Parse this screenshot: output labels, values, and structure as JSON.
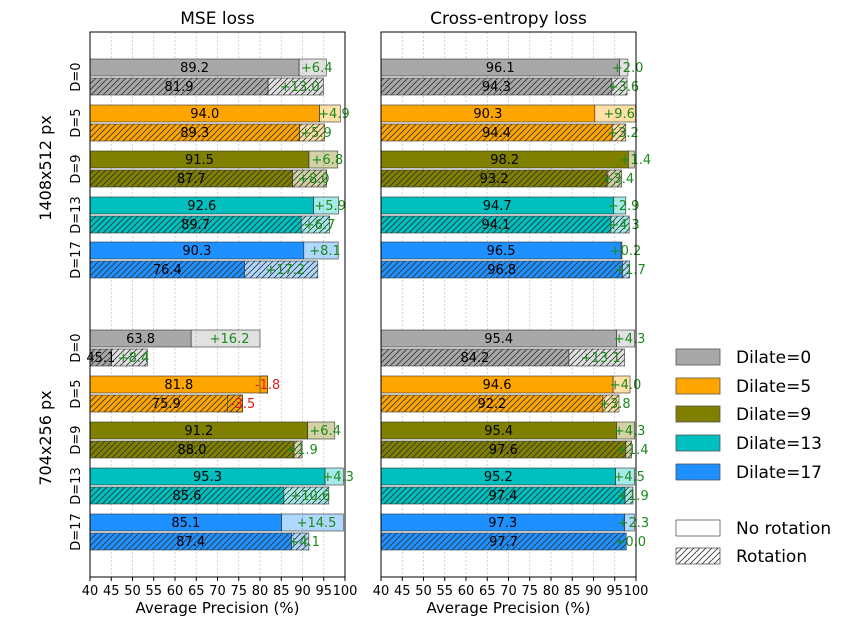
{
  "chart_data": [
    {
      "type": "bar",
      "orientation": "horizontal",
      "stacked": true,
      "title": "MSE loss",
      "xlabel": "Average Precision (%)",
      "xlim": [
        40,
        100
      ],
      "xticks": [
        "40",
        "45",
        "50",
        "55",
        "60",
        "65",
        "70",
        "75",
        "80",
        "85",
        "90",
        "95",
        "100"
      ],
      "grid": "vertical dashed",
      "groups": [
        {
          "name": "1408x512 px",
          "rows": [
            {
              "label": "D=0",
              "color": "#a8a8a8",
              "no_rotation": {
                "base": "89.2",
                "delta": "+6.4"
              },
              "rotation": {
                "base": "81.9",
                "delta": "+13.0"
              }
            },
            {
              "label": "D=5",
              "color": "#ffa500",
              "no_rotation": {
                "base": "94.0",
                "delta": "+4.9"
              },
              "rotation": {
                "base": "89.3",
                "delta": "+5.9"
              }
            },
            {
              "label": "D=9",
              "color": "#7f7f00",
              "no_rotation": {
                "base": "91.5",
                "delta": "+6.8"
              },
              "rotation": {
                "base": "87.7",
                "delta": "+8.0"
              }
            },
            {
              "label": "D=13",
              "color": "#00bfbf",
              "no_rotation": {
                "base": "92.6",
                "delta": "+5.9"
              },
              "rotation": {
                "base": "89.7",
                "delta": "+6.7"
              }
            },
            {
              "label": "D=17",
              "color": "#1e90ff",
              "no_rotation": {
                "base": "90.3",
                "delta": "+8.1"
              },
              "rotation": {
                "base": "76.4",
                "delta": "+17.2"
              }
            }
          ]
        },
        {
          "name": "704x256 px",
          "rows": [
            {
              "label": "D=0",
              "color": "#a8a8a8",
              "no_rotation": {
                "base": "63.8",
                "delta": "+16.2"
              },
              "rotation": {
                "base": "45.1",
                "delta": "+8.4"
              }
            },
            {
              "label": "D=5",
              "color": "#ffa500",
              "no_rotation": {
                "base": "81.8",
                "delta": "-1.8"
              },
              "rotation": {
                "base": "75.9",
                "delta": "-3.5"
              }
            },
            {
              "label": "D=9",
              "color": "#7f7f00",
              "no_rotation": {
                "base": "91.2",
                "delta": "+6.4"
              },
              "rotation": {
                "base": "88.0",
                "delta": "+1.9"
              }
            },
            {
              "label": "D=13",
              "color": "#00bfbf",
              "no_rotation": {
                "base": "95.3",
                "delta": "+4.3"
              },
              "rotation": {
                "base": "85.6",
                "delta": "+10.6"
              }
            },
            {
              "label": "D=17",
              "color": "#1e90ff",
              "no_rotation": {
                "base": "85.1",
                "delta": "+14.5"
              },
              "rotation": {
                "base": "87.4",
                "delta": "+4.1"
              }
            }
          ]
        }
      ]
    },
    {
      "type": "bar",
      "orientation": "horizontal",
      "stacked": true,
      "title": "Cross-entropy loss",
      "xlabel": "Average Precision (%)",
      "xlim": [
        40,
        100
      ],
      "xticks": [
        "40",
        "45",
        "50",
        "55",
        "60",
        "65",
        "70",
        "75",
        "80",
        "85",
        "90",
        "95",
        "100"
      ],
      "grid": "vertical dashed",
      "groups": [
        {
          "name": "1408x512 px",
          "rows": [
            {
              "label": "D=0",
              "color": "#a8a8a8",
              "no_rotation": {
                "base": "96.1",
                "delta": "+2.0"
              },
              "rotation": {
                "base": "94.3",
                "delta": "+3.6"
              }
            },
            {
              "label": "D=5",
              "color": "#ffa500",
              "no_rotation": {
                "base": "90.3",
                "delta": "+9.6"
              },
              "rotation": {
                "base": "94.4",
                "delta": "+3.2"
              }
            },
            {
              "label": "D=9",
              "color": "#7f7f00",
              "no_rotation": {
                "base": "98.2",
                "delta": "+1.4"
              },
              "rotation": {
                "base": "93.2",
                "delta": "+3.4"
              }
            },
            {
              "label": "D=13",
              "color": "#00bfbf",
              "no_rotation": {
                "base": "94.7",
                "delta": "+2.9"
              },
              "rotation": {
                "base": "94.1",
                "delta": "+4.3"
              }
            },
            {
              "label": "D=17",
              "color": "#1e90ff",
              "no_rotation": {
                "base": "96.5",
                "delta": "+0.2"
              },
              "rotation": {
                "base": "96.8",
                "delta": "+1.7"
              }
            }
          ]
        },
        {
          "name": "704x256 px",
          "rows": [
            {
              "label": "D=0",
              "color": "#a8a8a8",
              "no_rotation": {
                "base": "95.4",
                "delta": "+4.3"
              },
              "rotation": {
                "base": "84.2",
                "delta": "+13.1"
              }
            },
            {
              "label": "D=5",
              "color": "#ffa500",
              "no_rotation": {
                "base": "94.6",
                "delta": "+4.0"
              },
              "rotation": {
                "base": "92.2",
                "delta": "+3.8"
              }
            },
            {
              "label": "D=9",
              "color": "#7f7f00",
              "no_rotation": {
                "base": "95.4",
                "delta": "+4.3"
              },
              "rotation": {
                "base": "97.6",
                "delta": "+1.4"
              }
            },
            {
              "label": "D=13",
              "color": "#00bfbf",
              "no_rotation": {
                "base": "95.2",
                "delta": "+4.5"
              },
              "rotation": {
                "base": "97.4",
                "delta": "+1.9"
              }
            },
            {
              "label": "D=17",
              "color": "#1e90ff",
              "no_rotation": {
                "base": "97.3",
                "delta": "+2.3"
              },
              "rotation": {
                "base": "97.7",
                "delta": "+0.0"
              }
            }
          ]
        }
      ]
    }
  ],
  "legend": {
    "placement": "right",
    "items": [
      {
        "label": "Dilate=0",
        "color": "#a8a8a8",
        "style": "solid"
      },
      {
        "label": "Dilate=5",
        "color": "#ffa500",
        "style": "solid"
      },
      {
        "label": "Dilate=9",
        "color": "#7f7f00",
        "style": "solid"
      },
      {
        "label": "Dilate=13",
        "color": "#00bfbf",
        "style": "solid"
      },
      {
        "label": "Dilate=17",
        "color": "#1e90ff",
        "style": "solid"
      },
      {
        "label": "No rotation",
        "color": "#ffffff",
        "style": "empty"
      },
      {
        "label": "Rotation",
        "color": "#ffffff",
        "style": "hatched"
      }
    ]
  },
  "colors": {
    "positive_delta": "#1a8a1a",
    "negative_delta": "#e31a1c"
  }
}
